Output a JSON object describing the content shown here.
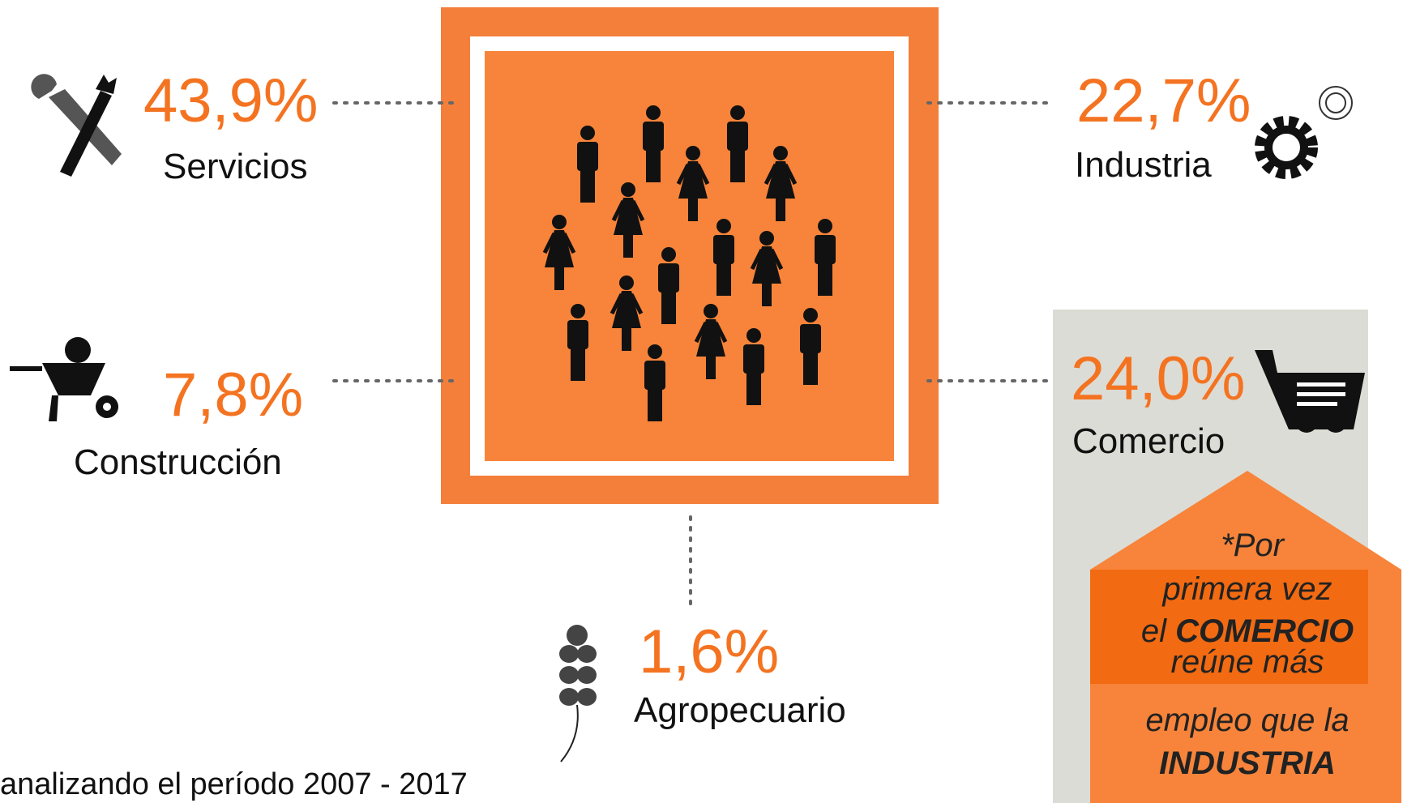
{
  "sectors": [
    {
      "value": "43,9%",
      "label": "Servicios"
    },
    {
      "value": "22,7%",
      "label": "Industria"
    },
    {
      "value": "7,8%",
      "label": "Construcción"
    },
    {
      "value": "24,0%",
      "label": "Comercio"
    },
    {
      "value": "1,6%",
      "label": "Agropecuario"
    }
  ],
  "note": {
    "lines": [
      "*Por",
      "primera vez",
      "el",
      "COMERCIO",
      "reúne más",
      "empleo que la",
      "INDUSTRIA"
    ]
  },
  "footer": "analizando el período 2007 - 2017"
}
